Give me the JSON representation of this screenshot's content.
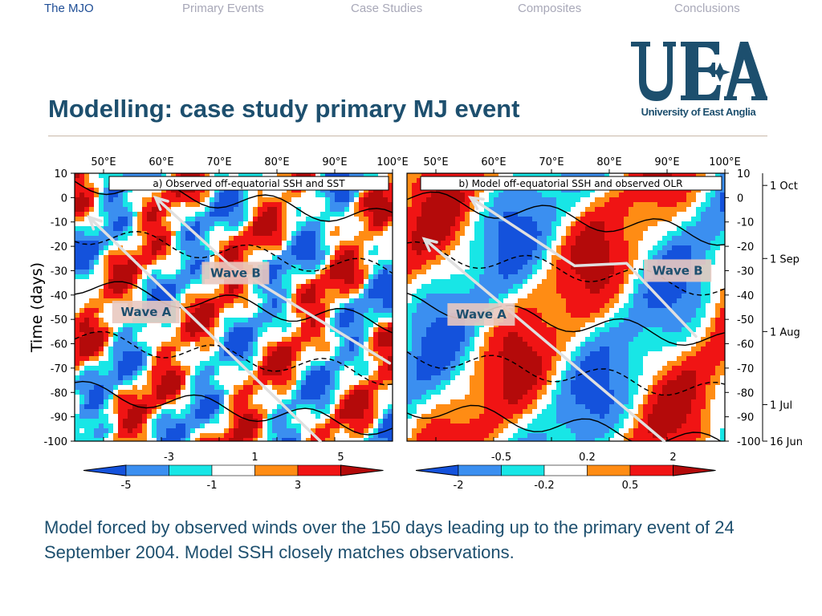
{
  "nav": {
    "items": [
      "The MJO",
      "Primary Events",
      "Case Studies",
      "Composites",
      "Conclusions"
    ],
    "active_index": 0
  },
  "logo": {
    "text": "UEA",
    "subtitle": "University of East Anglia"
  },
  "slide": {
    "title": "Modelling: case study primary MJ event",
    "caption": "Model  forced by observed  winds over the 150 days leading up to the primary event of 24 September 2004.  Model SSH closely matches observations."
  },
  "colors": {
    "text": "#1d4f6e",
    "nav_active": "#1f4e96",
    "nav_inactive": "#a8a8b8",
    "levels": [
      "#1452dc",
      "#3b8ff0",
      "#18e6e6",
      "#ffffff",
      "#ff8c14",
      "#f01414",
      "#b40a0a"
    ],
    "wave_line": "#e0e0e0",
    "wave_label_bg": "#e9c9c0"
  },
  "chart_data": {
    "type": "heatmap",
    "shared_y_axis": {
      "label": "Time (days)",
      "ylim": [
        -100,
        10
      ],
      "ticks": [
        10,
        0,
        -10,
        -20,
        -30,
        -40,
        -50,
        -60,
        -70,
        -80,
        -90,
        -100
      ],
      "tick_labels": [
        "10",
        "0",
        "-10",
        "-20",
        "-30",
        "-40",
        "-50",
        "-60",
        "-70",
        "-80",
        "-90",
        "-100"
      ]
    },
    "date_axis": {
      "ticks": [
        5,
        -25,
        -55,
        -85,
        -110
      ],
      "labels": [
        "1 Oct",
        "1 Sep",
        "1 Aug",
        "1 Jul",
        "16 Jun"
      ]
    },
    "x_axis": {
      "xlim": [
        45,
        100
      ],
      "ticks": [
        50,
        60,
        70,
        80,
        90,
        100
      ],
      "tick_labels": [
        "50°E",
        "60°E",
        "70°E",
        "80°E",
        "90°E",
        "100°E"
      ]
    },
    "panels": [
      {
        "title": "a) Observed off-equatorial SSH and SST",
        "colorbar": {
          "boundaries": [
            -5,
            -3,
            -1,
            1,
            3,
            5
          ],
          "upper_labels": [
            "-3",
            "1",
            "5"
          ],
          "lower_labels": [
            "-5",
            "-1",
            "3"
          ]
        },
        "waves": [
          {
            "name": "Wave A",
            "label_at": [
              51.5,
              -46
            ],
            "line": [
              [
                87.5,
                -100
              ],
              [
                47.5,
                -8
              ]
            ]
          },
          {
            "name": "Wave B",
            "label_at": [
              67,
              -30
            ],
            "line": [
              [
                99.5,
                -68
              ],
              [
                72,
                -28
              ],
              [
                59,
                0
              ]
            ]
          }
        ]
      },
      {
        "title": "b) Model off-equatorial SSH and observed OLR",
        "colorbar": {
          "boundaries": [
            -2,
            -0.5,
            -0.2,
            0.2,
            0.5,
            2
          ],
          "upper_labels": [
            "-0.5",
            "0.2",
            "2"
          ],
          "lower_labels": [
            "-2",
            "-0.2",
            "0.5"
          ]
        },
        "waves": [
          {
            "name": "Wave A",
            "label_at": [
              52,
              -47
            ],
            "line": [
              [
                89.5,
                -100
              ],
              [
                48,
                -17
              ]
            ]
          },
          {
            "name": "Wave B",
            "label_at": [
              86,
              -29
            ],
            "line": [
              [
                95,
                -57
              ],
              [
                83,
                -27
              ],
              [
                74,
                -28
              ],
              [
                56,
                0
              ]
            ]
          }
        ]
      }
    ]
  }
}
